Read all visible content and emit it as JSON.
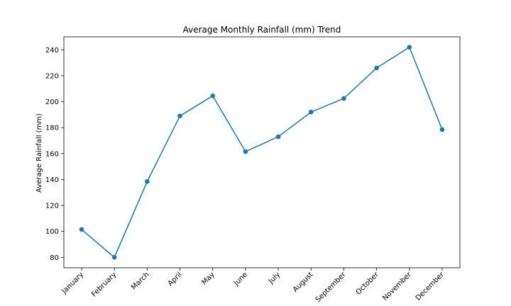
{
  "chart_data": {
    "type": "line",
    "title": "Average Monthly Rainfall (mm) Trend",
    "xlabel": "",
    "ylabel": "Average Rainfall (mm)",
    "categories": [
      "January",
      "February",
      "March",
      "April",
      "May",
      "June",
      "July",
      "August",
      "September",
      "October",
      "November",
      "December"
    ],
    "series": [
      {
        "values": [
          101.5,
          80,
          138.5,
          189,
          204.5,
          161.5,
          173,
          192,
          202.5,
          226,
          242,
          178.5
        ],
        "color": "#1f77b4"
      }
    ],
    "ylim": [
      72,
      250
    ],
    "yticks": [
      80,
      100,
      120,
      140,
      160,
      180,
      200,
      220,
      240
    ],
    "grid": false
  }
}
